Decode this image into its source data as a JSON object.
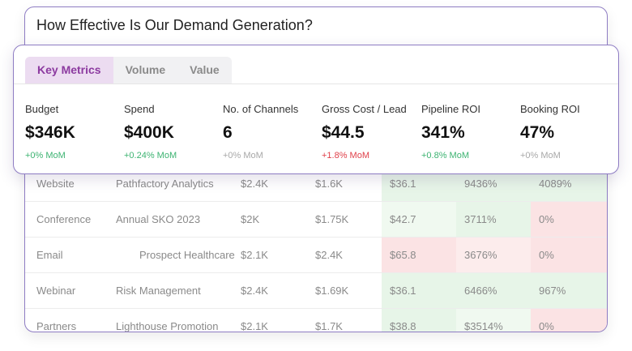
{
  "back_card": {
    "title": "How Effective Is Our Demand Generation?"
  },
  "table": {
    "rows": [
      {
        "channel": "Website",
        "campaign": "Pathfactory Analytics",
        "budget": "$2.4K",
        "spend": "$1.6K",
        "cost_lead": "$36.1",
        "pipeline_roi": "9436%",
        "booking_roi": "4089%"
      },
      {
        "channel": "Conference",
        "campaign": "Annual SKO 2023",
        "budget": "$2K",
        "spend": "$1.75K",
        "cost_lead": "$42.7",
        "pipeline_roi": "3711%",
        "booking_roi": "0%"
      },
      {
        "channel": "Email",
        "campaign": "Prospect Healthcare",
        "budget": "$2.1K",
        "spend": "$2.4K",
        "cost_lead": "$65.8",
        "pipeline_roi": "3676%",
        "booking_roi": "0%"
      },
      {
        "channel": "Webinar",
        "campaign": "Risk Management",
        "budget": "$2.4K",
        "spend": "$1.69K",
        "cost_lead": "$36.1",
        "pipeline_roi": "6466%",
        "booking_roi": "967%"
      },
      {
        "channel": "Partners",
        "campaign": "Lighthouse Promotion",
        "budget": "$2.1K",
        "spend": "$1.7K",
        "cost_lead": "$38.8",
        "pipeline_roi": "$3514%",
        "booking_roi": "0%"
      }
    ]
  },
  "tabs": [
    {
      "label": "Key Metrics"
    },
    {
      "label": "Volume"
    },
    {
      "label": "Value"
    }
  ],
  "metrics": [
    {
      "label": "Budget",
      "value": "$346K",
      "change": "+0% MoM"
    },
    {
      "label": "Spend",
      "value": "$400K",
      "change": "+0.24% MoM"
    },
    {
      "label": "No. of Channels",
      "value": "6",
      "change": "+0% MoM"
    },
    {
      "label": "Gross Cost / Lead",
      "value": "$44.5",
      "change": "+1.8% MoM"
    },
    {
      "label": "Pipeline ROI",
      "value": "341%",
      "change": "+0.8% MoM"
    },
    {
      "label": "Booking ROI",
      "value": "47%",
      "change": "+0% MoM"
    }
  ],
  "colors": {
    "accent": "#8c3aa0",
    "border": "#8e7cc3",
    "positive": "#3cb371",
    "negative": "#e0404a",
    "neutral": "#a8a8a8"
  }
}
